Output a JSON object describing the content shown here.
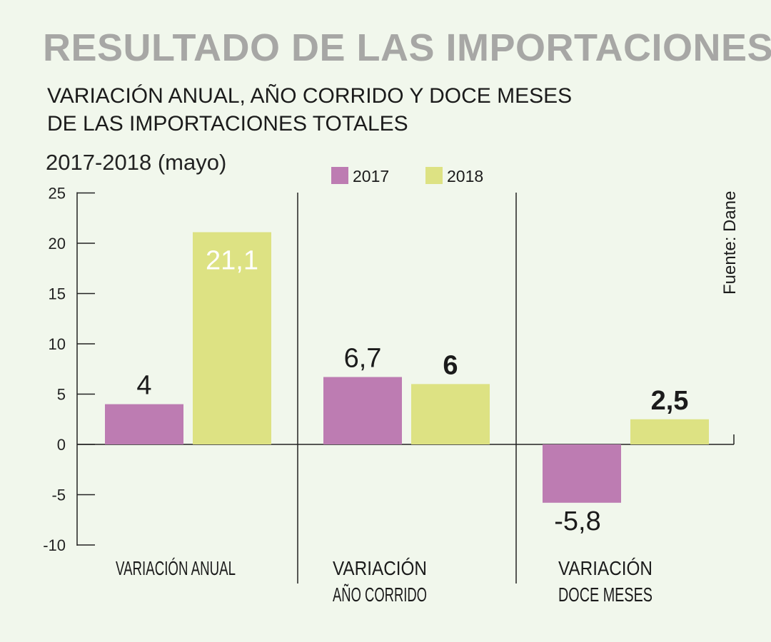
{
  "title": "RESULTADO DE LAS IMPORTACIONES",
  "subtitle_lines": [
    "VARIACIÓN ANUAL, AÑO CORRIDO Y DOCE MESES",
    "DE LAS IMPORTACIONES TOTALES"
  ],
  "period": "2017-2018 (mayo)",
  "source": "Fuente: Dane",
  "colors": {
    "background": "#f1f7ec",
    "series_2017": "#bd7cb2",
    "series_2018": "#dde283",
    "title": "#a7a7a5",
    "text": "#1b1b1b"
  },
  "chart_data": {
    "type": "bar",
    "categories": [
      [
        "VARIACIÓN ANUAL"
      ],
      [
        "VARIACIÓN",
        "AÑO CORRIDO"
      ],
      [
        "VARIACIÓN",
        "DOCE MESES"
      ]
    ],
    "series": [
      {
        "name": "2017",
        "values": [
          4,
          6.7,
          -5.8
        ],
        "labels": [
          "4",
          "6,7",
          "-5,8"
        ]
      },
      {
        "name": "2018",
        "values": [
          21.1,
          6,
          2.5
        ],
        "labels": [
          "21,1",
          "6",
          "2,5"
        ]
      }
    ],
    "ylim": [
      -10,
      25
    ],
    "yticks": [
      25,
      20,
      15,
      10,
      5,
      0,
      -5,
      -10
    ],
    "ytick_labels": [
      "25",
      "20",
      "15",
      "10",
      "5",
      "0",
      "-5",
      "-10"
    ],
    "legend": [
      "2017",
      "2018"
    ],
    "legend_position": "top-center",
    "grid": false
  }
}
